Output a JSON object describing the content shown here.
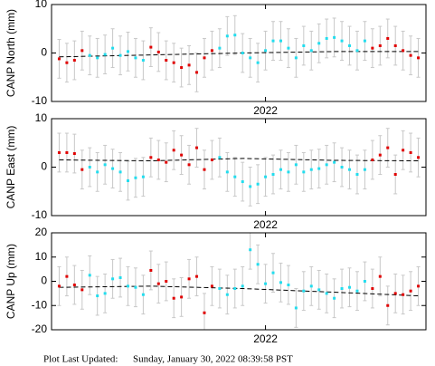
{
  "chart_data": [
    {
      "type": "scatter",
      "y_label": "CANP North (mm)",
      "x": [
        0,
        1,
        2,
        3,
        4,
        5,
        6,
        7,
        8,
        9,
        10,
        11,
        12,
        13,
        14,
        15,
        16,
        17,
        18,
        19,
        20,
        21,
        22,
        23,
        24,
        25,
        26,
        27,
        28,
        29,
        30,
        31,
        32,
        33,
        34,
        35,
        36,
        37,
        38,
        39,
        40,
        41,
        42,
        43,
        44,
        45,
        46,
        47
      ],
      "values": [
        -1.2,
        -2,
        -1.5,
        0.5,
        -0.5,
        -1,
        -0.3,
        1,
        -0.5,
        0.3,
        -1,
        -1.5,
        1.2,
        0.2,
        -1.5,
        -2,
        -3,
        -2.5,
        -4,
        -1,
        0.5,
        1,
        3.5,
        3.7,
        0,
        -1,
        -2,
        0.5,
        2.5,
        2.5,
        1,
        -1,
        1.5,
        0.5,
        2,
        3,
        3.2,
        2.5,
        1.5,
        0.5,
        2.5,
        1,
        1.5,
        3,
        1.5,
        0.5,
        -0.5,
        -1
      ],
      "point_colors": [
        "#e00000",
        "#e00000",
        "#e00000",
        "#e00000",
        "#22ddee",
        "#22ddee",
        "#22ddee",
        "#22ddee",
        "#22ddee",
        "#22ddee",
        "#22ddee",
        "#22ddee",
        "#e00000",
        "#e00000",
        "#e00000",
        "#e00000",
        "#e00000",
        "#e00000",
        "#e00000",
        "#e00000",
        "#e00000",
        "#22ddee",
        "#22ddee",
        "#22ddee",
        "#22ddee",
        "#22ddee",
        "#22ddee",
        "#22ddee",
        "#22ddee",
        "#22ddee",
        "#22ddee",
        "#22ddee",
        "#22ddee",
        "#22ddee",
        "#22ddee",
        "#22ddee",
        "#22ddee",
        "#22ddee",
        "#22ddee",
        "#22ddee",
        "#22ddee",
        "#e00000",
        "#e00000",
        "#e00000",
        "#e00000",
        "#e00000",
        "#e00000",
        "#e00000"
      ],
      "error": 4,
      "trend_x": [
        0,
        12,
        24,
        36,
        47
      ],
      "trend": [
        -0.8,
        -0.4,
        0,
        0.3,
        0.3
      ],
      "xlim": [
        -1,
        48
      ],
      "xticks": [
        {
          "value": 27,
          "label": "2022"
        }
      ],
      "ylim": [
        -10,
        10
      ],
      "yticks": [
        -10,
        0,
        10
      ]
    },
    {
      "type": "scatter",
      "y_label": "CANP East (mm)",
      "x": [
        0,
        1,
        2,
        3,
        4,
        5,
        6,
        7,
        8,
        9,
        10,
        11,
        12,
        13,
        14,
        15,
        16,
        17,
        18,
        19,
        20,
        21,
        22,
        23,
        24,
        25,
        26,
        27,
        28,
        29,
        30,
        31,
        32,
        33,
        34,
        35,
        36,
        37,
        38,
        39,
        40,
        41,
        42,
        43,
        44,
        45,
        46,
        47
      ],
      "values": [
        3,
        3,
        2.8,
        -0.5,
        0,
        -1,
        0.5,
        -0.3,
        -1,
        -2.8,
        -2.2,
        -2,
        2,
        1.5,
        1,
        3.5,
        2.5,
        0.5,
        4,
        -0.5,
        1.5,
        2,
        -1,
        -2,
        -3,
        -4,
        -3.5,
        -2,
        -1.5,
        -0.5,
        -1,
        0.5,
        -1,
        -0.5,
        -0.3,
        0.5,
        1,
        0,
        -0.5,
        -1.5,
        -0.5,
        1.5,
        2.5,
        4,
        -1.5,
        3.5,
        3,
        2
      ],
      "point_colors": [
        "#e00000",
        "#e00000",
        "#e00000",
        "#e00000",
        "#22ddee",
        "#22ddee",
        "#22ddee",
        "#22ddee",
        "#22ddee",
        "#22ddee",
        "#22ddee",
        "#22ddee",
        "#e00000",
        "#e00000",
        "#e00000",
        "#e00000",
        "#e00000",
        "#e00000",
        "#e00000",
        "#e00000",
        "#e00000",
        "#22ddee",
        "#22ddee",
        "#22ddee",
        "#22ddee",
        "#22ddee",
        "#22ddee",
        "#22ddee",
        "#22ddee",
        "#22ddee",
        "#22ddee",
        "#22ddee",
        "#22ddee",
        "#22ddee",
        "#22ddee",
        "#22ddee",
        "#22ddee",
        "#22ddee",
        "#22ddee",
        "#22ddee",
        "#22ddee",
        "#e00000",
        "#e00000",
        "#e00000",
        "#e00000",
        "#e00000",
        "#e00000",
        "#e00000"
      ],
      "error": 4,
      "trend_x": [
        0,
        12,
        24,
        36,
        47
      ],
      "trend": [
        1.5,
        1.3,
        1.8,
        1.4,
        1.3
      ],
      "xlim": [
        -1,
        48
      ],
      "xticks": [
        {
          "value": 27,
          "label": "2022"
        }
      ],
      "ylim": [
        -10,
        10
      ],
      "yticks": [
        -10,
        0,
        10
      ]
    },
    {
      "type": "scatter",
      "y_label": "CANP Up (mm)",
      "x": [
        0,
        1,
        2,
        3,
        4,
        5,
        6,
        7,
        8,
        9,
        10,
        11,
        12,
        13,
        14,
        15,
        16,
        17,
        18,
        19,
        20,
        21,
        22,
        23,
        24,
        25,
        26,
        27,
        28,
        29,
        30,
        31,
        32,
        33,
        34,
        35,
        36,
        37,
        38,
        39,
        40,
        41,
        42,
        43,
        44,
        45,
        46,
        47
      ],
      "values": [
        -2,
        2,
        -1.5,
        -3.5,
        2.5,
        -6,
        -5,
        1,
        1.5,
        -2,
        -2.5,
        -5.5,
        4.5,
        -1,
        0,
        -7,
        -6.5,
        1,
        2,
        -13,
        -2,
        -3,
        -5.5,
        -3,
        -2,
        13,
        7,
        -1,
        3.5,
        -0.5,
        -1.5,
        -11,
        -4,
        -2,
        -3.5,
        -5,
        -7,
        -3,
        -2.5,
        -4,
        0,
        -3,
        2,
        -10,
        -5,
        -5.5,
        -4,
        -2
      ],
      "point_colors": [
        "#e00000",
        "#e00000",
        "#e00000",
        "#e00000",
        "#22ddee",
        "#22ddee",
        "#22ddee",
        "#22ddee",
        "#22ddee",
        "#22ddee",
        "#22ddee",
        "#22ddee",
        "#e00000",
        "#e00000",
        "#e00000",
        "#e00000",
        "#e00000",
        "#e00000",
        "#e00000",
        "#e00000",
        "#e00000",
        "#22ddee",
        "#22ddee",
        "#22ddee",
        "#22ddee",
        "#22ddee",
        "#22ddee",
        "#22ddee",
        "#22ddee",
        "#22ddee",
        "#22ddee",
        "#22ddee",
        "#22ddee",
        "#22ddee",
        "#22ddee",
        "#22ddee",
        "#22ddee",
        "#22ddee",
        "#22ddee",
        "#22ddee",
        "#22ddee",
        "#e00000",
        "#e00000",
        "#e00000",
        "#e00000",
        "#e00000",
        "#e00000",
        "#e00000"
      ],
      "error": 8,
      "trend_x": [
        0,
        12,
        24,
        36,
        47
      ],
      "trend": [
        -2.5,
        -2,
        -3,
        -4.5,
        -6
      ],
      "xlim": [
        -1,
        48
      ],
      "xticks": [
        {
          "value": 27,
          "label": "2022"
        }
      ],
      "ylim": [
        -20,
        20
      ],
      "yticks": [
        -20,
        -10,
        0,
        10,
        20
      ]
    }
  ],
  "footer": {
    "label": "Plot Last Updated:",
    "timestamp": "Sunday, January 30, 2022 08:39:58 PST"
  }
}
